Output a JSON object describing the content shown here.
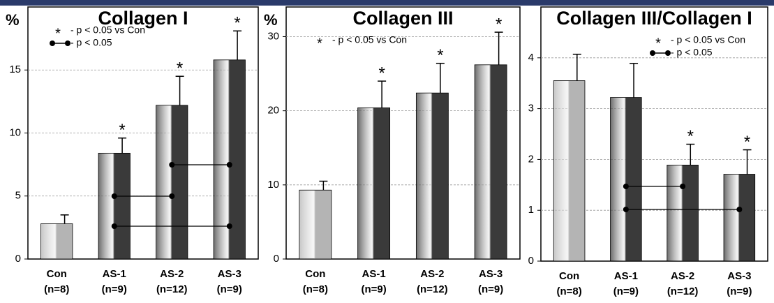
{
  "chart_data": [
    {
      "type": "bar",
      "title": "Collagen I",
      "y_label": "%",
      "categories": [
        "Con",
        "AS-1",
        "AS-2",
        "AS-3"
      ],
      "n_labels": [
        "(n=8)",
        "(n=9)",
        "(n=12)",
        "(n=9)"
      ],
      "values": [
        2.8,
        8.4,
        12.2,
        15.8
      ],
      "errors": [
        0.7,
        1.2,
        2.3,
        2.3
      ],
      "annotations": [
        null,
        "*",
        "*",
        "*"
      ],
      "bar_colors": [
        "#b4b4b4",
        "#3a3a3a",
        "#3a3a3a",
        "#3a3a3a"
      ],
      "legend": [
        {
          "symbol": "*",
          "text": "- p < 0.05 vs Con"
        },
        {
          "text": "- p < 0.05"
        }
      ],
      "ylim": [
        0,
        20
      ],
      "yticks": [
        0,
        5,
        10,
        15
      ],
      "grid": true
    },
    {
      "type": "bar",
      "title": "Collagen III",
      "y_label": "%",
      "categories": [
        "Con",
        "AS-1",
        "AS-2",
        "AS-3"
      ],
      "n_labels": [
        "(n=8)",
        "(n=9)",
        "(n=12)",
        "(n=9)"
      ],
      "values": [
        9.3,
        20.4,
        22.4,
        26.2
      ],
      "errors": [
        1.2,
        3.6,
        4.0,
        4.4
      ],
      "annotations": [
        null,
        "*",
        "*",
        "*"
      ],
      "bar_colors": [
        "#b4b4b4",
        "#3a3a3a",
        "#3a3a3a",
        "#3a3a3a"
      ],
      "legend": [
        {
          "symbol": "*",
          "text": "- p < 0.05 vs Con"
        }
      ],
      "ylim": [
        0,
        34
      ],
      "yticks": [
        0,
        10,
        20,
        30
      ],
      "grid": true
    },
    {
      "type": "bar",
      "title": "Collagen III/Collagen I",
      "categories": [
        "Con",
        "AS-1",
        "AS-2",
        "AS-3"
      ],
      "n_labels": [
        "(n=8)",
        "(n=9)",
        "(n=12)",
        "(n=9)"
      ],
      "values": [
        3.55,
        3.22,
        1.89,
        1.71
      ],
      "errors": [
        0.52,
        0.67,
        0.41,
        0.48
      ],
      "annotations": [
        null,
        null,
        "*",
        "*"
      ],
      "bar_colors": [
        "#b4b4b4",
        "#3a3a3a",
        "#3a3a3a",
        "#3a3a3a"
      ],
      "legend": [
        {
          "symbol": "*",
          "text": "- p < 0.05 vs Con"
        },
        {
          "text": "- p < 0.05"
        }
      ],
      "ylim": [
        0,
        5
      ],
      "yticks": [
        0,
        1,
        2,
        3,
        4
      ],
      "grid": true
    }
  ]
}
